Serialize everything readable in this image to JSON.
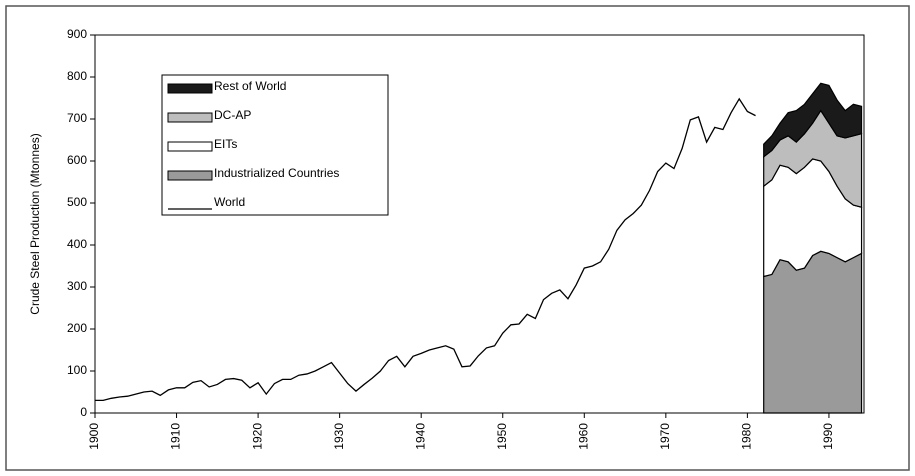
{
  "chart_data": {
    "type": "area",
    "y_label": "Crude Steel Production (Mtonnes)",
    "xlim": [
      1900,
      1994.3
    ],
    "ylim": [
      0,
      900
    ],
    "xticks": [
      1900,
      1910,
      1920,
      1930,
      1940,
      1950,
      1960,
      1970,
      1980,
      1990
    ],
    "yticks": [
      0,
      100,
      200,
      300,
      400,
      500,
      600,
      700,
      800,
      900
    ],
    "legend": "upper left",
    "series": [
      {
        "name": "Industrialized Countries",
        "type": "area",
        "color": "#9a9a9a",
        "x": [
          1982,
          1983,
          1984,
          1985,
          1986,
          1987,
          1988,
          1989,
          1990,
          1991,
          1992,
          1993,
          1994
        ],
        "values": [
          325,
          330,
          365,
          360,
          340,
          345,
          375,
          385,
          380,
          370,
          360,
          370,
          380
        ]
      },
      {
        "name": "EITs",
        "type": "area",
        "color": "#ffffff",
        "x": [
          1982,
          1983,
          1984,
          1985,
          1986,
          1987,
          1988,
          1989,
          1990,
          1991,
          1992,
          1993,
          1994
        ],
        "values": [
          215,
          225,
          225,
          225,
          230,
          240,
          230,
          215,
          195,
          170,
          150,
          125,
          110
        ]
      },
      {
        "name": "DC-AP",
        "type": "area",
        "color": "#bdbdbd",
        "x": [
          1982,
          1983,
          1984,
          1985,
          1986,
          1987,
          1988,
          1989,
          1990,
          1991,
          1992,
          1993,
          1994
        ],
        "values": [
          70,
          70,
          60,
          75,
          75,
          80,
          85,
          120,
          115,
          120,
          145,
          165,
          175
        ]
      },
      {
        "name": "Rest of World",
        "type": "area",
        "color": "#1a1a1a",
        "x": [
          1982,
          1983,
          1984,
          1985,
          1986,
          1987,
          1988,
          1989,
          1990,
          1991,
          1992,
          1993,
          1994
        ],
        "values": [
          30,
          35,
          40,
          55,
          75,
          70,
          70,
          65,
          90,
          85,
          65,
          75,
          65
        ]
      },
      {
        "name": "World",
        "type": "line",
        "color": "#000000",
        "x": [
          1900,
          1901,
          1902,
          1903,
          1904,
          1905,
          1906,
          1907,
          1908,
          1909,
          1910,
          1911,
          1912,
          1913,
          1914,
          1915,
          1916,
          1917,
          1918,
          1919,
          1920,
          1921,
          1922,
          1923,
          1924,
          1925,
          1926,
          1927,
          1928,
          1929,
          1930,
          1931,
          1932,
          1933,
          1934,
          1935,
          1936,
          1937,
          1938,
          1939,
          1940,
          1941,
          1942,
          1943,
          1944,
          1945,
          1946,
          1947,
          1948,
          1949,
          1950,
          1951,
          1952,
          1953,
          1954,
          1955,
          1956,
          1957,
          1958,
          1959,
          1960,
          1961,
          1962,
          1963,
          1964,
          1965,
          1966,
          1967,
          1968,
          1969,
          1970,
          1971,
          1972,
          1973,
          1974,
          1975,
          1976,
          1977,
          1978,
          1979,
          1980,
          1981
        ],
        "values": [
          30,
          30,
          35,
          38,
          40,
          45,
          50,
          52,
          42,
          55,
          60,
          60,
          73,
          77,
          62,
          68,
          80,
          82,
          78,
          60,
          72,
          45,
          70,
          80,
          80,
          90,
          93,
          100,
          110,
          120,
          95,
          70,
          52,
          68,
          83,
          100,
          125,
          135,
          110,
          135,
          142,
          150,
          155,
          160,
          152,
          110,
          112,
          136,
          155,
          160,
          190,
          210,
          212,
          235,
          225,
          270,
          285,
          293,
          272,
          305,
          345,
          350,
          360,
          390,
          435,
          460,
          475,
          495,
          530,
          575,
          595,
          582,
          630,
          698,
          705,
          645,
          680,
          675,
          715,
          748,
          718,
          708
        ]
      }
    ]
  }
}
